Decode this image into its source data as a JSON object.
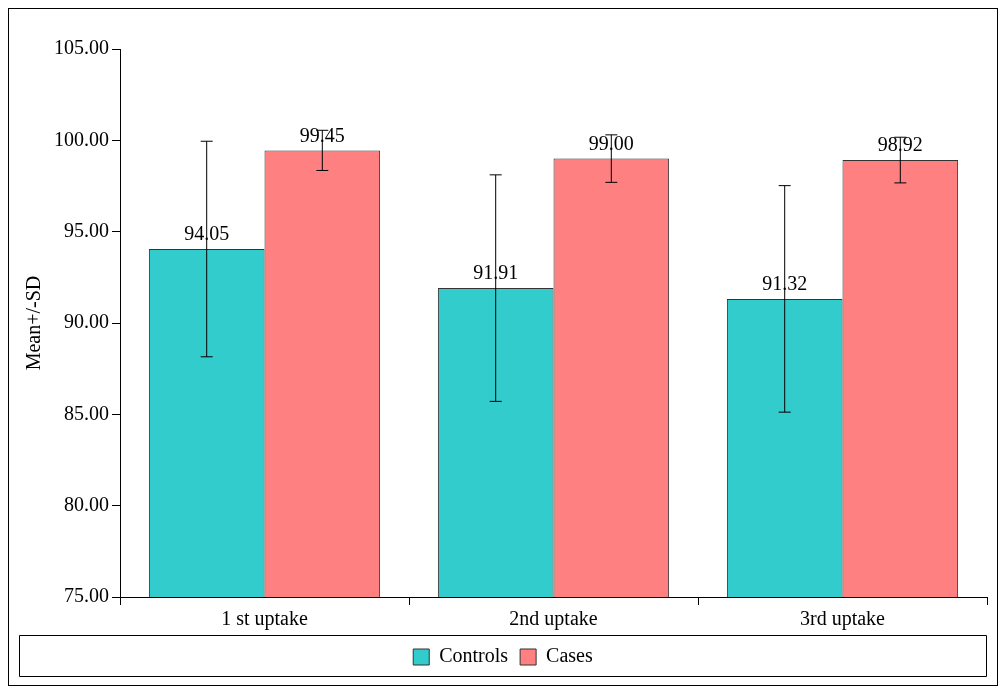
{
  "chart_data": {
    "type": "bar",
    "ylabel": "Mean+/-SD",
    "categories": [
      "1 st uptake",
      "2nd uptake",
      "3rd uptake"
    ],
    "series": [
      {
        "name": "Controls",
        "color": "#33cccc",
        "values": [
          94.05,
          91.91,
          91.32
        ],
        "errors": [
          5.9,
          6.2,
          6.2
        ],
        "value_labels": [
          "94.05",
          "91.91",
          "91.32"
        ]
      },
      {
        "name": "Cases",
        "color": "#ff8080",
        "values": [
          99.45,
          99.0,
          98.92
        ],
        "errors": [
          1.1,
          1.3,
          1.25
        ],
        "value_labels": [
          "99.45",
          "99.00",
          "98.92"
        ]
      }
    ],
    "ylim": [
      75,
      105
    ],
    "yticks": [
      {
        "value": 75,
        "label": "75.00"
      },
      {
        "value": 80,
        "label": "80.00"
      },
      {
        "value": 85,
        "label": "85.00"
      },
      {
        "value": 90,
        "label": "90.00"
      },
      {
        "value": 95,
        "label": "95.00"
      },
      {
        "value": 100,
        "label": "100.00"
      },
      {
        "value": 105,
        "label": "105.00"
      }
    ],
    "grid": false,
    "legend": "bottom"
  }
}
